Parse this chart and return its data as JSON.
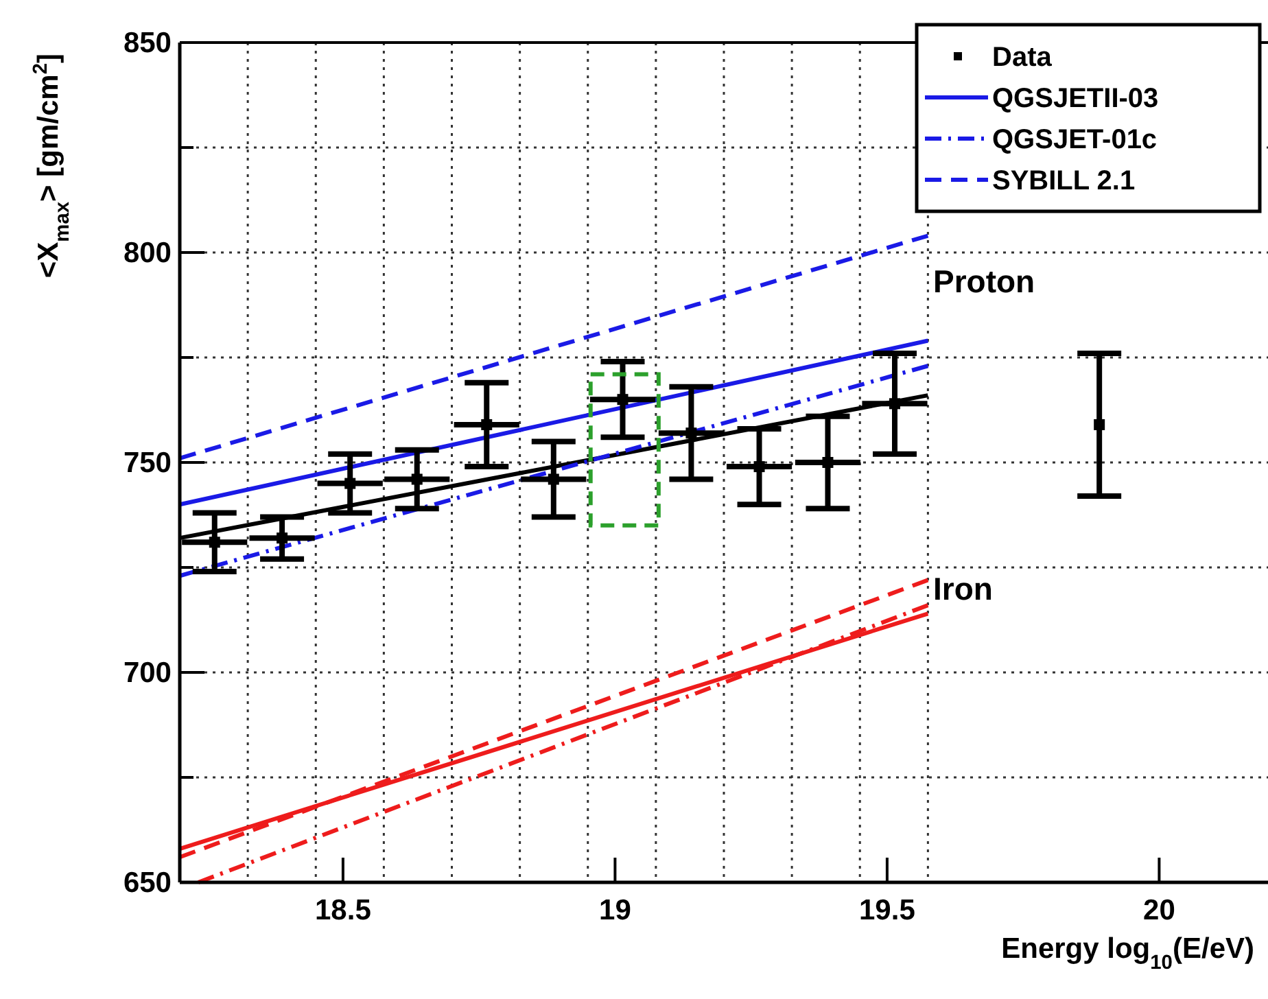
{
  "chart_data": {
    "type": "line",
    "xlabel": "Energy  log$_{10}$(E/eV)",
    "ylabel": "<X$_{max}$>  [gm/cm$^{2}$]",
    "xlim": [
      18.2,
      20.2
    ],
    "ylim": [
      650,
      850
    ],
    "xticks": [
      {
        "value": 18.325,
        "label": null
      },
      {
        "value": 18.45,
        "label": null
      },
      18.5,
      {
        "value": 18.575,
        "label": null
      },
      {
        "value": 18.7,
        "label": null
      },
      {
        "value": 18.825,
        "label": null
      },
      {
        "value": 18.95,
        "label": null
      },
      19,
      {
        "value": 19.075,
        "label": null
      },
      {
        "value": 19.2,
        "label": null
      },
      {
        "value": 19.325,
        "label": null
      },
      {
        "value": 19.45,
        "label": null
      },
      19.5,
      {
        "value": 19.575,
        "label": null
      },
      20
    ],
    "yticks": [
      650,
      {
        "value": 675,
        "label": null
      },
      700,
      {
        "value": 725,
        "label": null
      },
      750,
      {
        "value": 775,
        "label": null
      },
      800,
      {
        "value": 825,
        "label": null
      },
      850
    ],
    "grid": true,
    "legend": "top right",
    "annotations": [
      "Proton",
      "Iron"
    ],
    "series": [
      {
        "name": "Data",
        "type": "scatter",
        "marker": "square",
        "color": "#000000",
        "x": [
          18.264,
          18.388,
          18.513,
          18.636,
          18.764,
          18.887,
          19.014,
          19.14,
          19.265,
          19.391,
          19.514,
          19.89
        ],
        "values": [
          731,
          732,
          745,
          746,
          759,
          746,
          765,
          757,
          749,
          750,
          764,
          759
        ],
        "errors": [
          7,
          5,
          7,
          7,
          10,
          9,
          9,
          11,
          9,
          11,
          12,
          17
        ],
        "xerrors": [
          0.06,
          0.06,
          0.06,
          0.06,
          0.06,
          0.06,
          0.06,
          0.06,
          0.06,
          0.06,
          0.06,
          null
        ]
      },
      {
        "color": "#000000",
        "line_style": "solid",
        "x": [
          18.2,
          19.575
        ],
        "values": [
          732,
          766
        ]
      },
      {
        "name": "QGSJETII-03",
        "color": "#1a1ae6",
        "line_style": "solid",
        "x": [
          18.2,
          19.575
        ],
        "values": [
          740,
          779
        ]
      },
      {
        "name": "QGSJET-01c",
        "color": "#1a1ae6",
        "line_style": "dashdot",
        "x": [
          18.2,
          19.575
        ],
        "values": [
          723,
          773
        ]
      },
      {
        "name": "SYBILL 2.1",
        "color": "#1a1ae6",
        "line_style": "dashed",
        "x": [
          18.2,
          19.575
        ],
        "values": [
          751,
          804
        ]
      },
      {
        "color": "#ee1c1c",
        "line_style": "solid",
        "x": [
          18.2,
          19.575
        ],
        "values": [
          658,
          714
        ]
      },
      {
        "color": "#ee1c1c",
        "line_style": "dashdot",
        "x": [
          18.234,
          19.575
        ],
        "values": [
          650,
          716
        ]
      },
      {
        "color": "#ee1c1c",
        "line_style": "dashed",
        "x": [
          18.2,
          19.575
        ],
        "values": [
          656,
          722
        ]
      }
    ]
  }
}
